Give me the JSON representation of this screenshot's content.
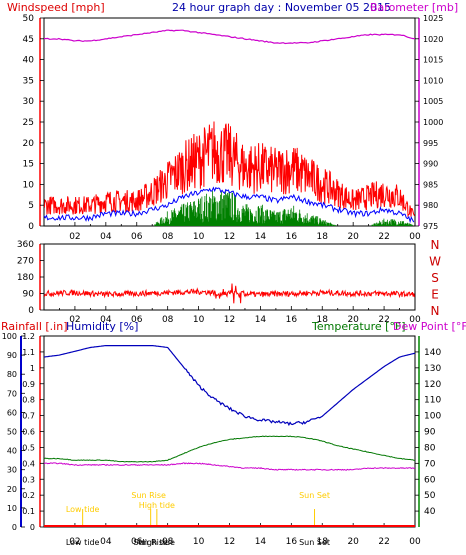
{
  "panel1": {
    "label_wind": "Windspeed [mph]",
    "title": "24 hour graph day : November 05 2015",
    "label_baro": "Barometer [mb]",
    "colors": {
      "wind_gust": "#ff0000",
      "wind_avg": "#0000ff",
      "wind_green": "#008000",
      "baro": "#cc00cc",
      "axis_left": "#ff0000",
      "axis_right": "#cc00cc"
    }
  },
  "panel2": {
    "dir_labels": [
      "N",
      "W",
      "S",
      "E",
      "N"
    ],
    "colors": {
      "direction": "#ff0000"
    }
  },
  "panel3": {
    "label_rain": "Rainfall [.in]",
    "label_hum": "Humidity [%]",
    "label_temp": "Temperature [°F]",
    "label_dew": "Dew Point [°F]",
    "astro": [
      "Low tide",
      "Sun Rise",
      "High tide",
      "Sun Set"
    ],
    "colors": {
      "humidity": "#0000bb",
      "temperature": "#007700",
      "dewpoint": "#cc00cc",
      "rain": "#ff0000",
      "astro": "#ffcc00"
    }
  },
  "chart_data": [
    {
      "type": "line",
      "title": "24 hour graph day : November 05 2015",
      "ylabel": "Windspeed [mph]",
      "y2label": "Barometer [mb]",
      "x_ticks": [
        "02",
        "04",
        "06",
        "08",
        "10",
        "12",
        "14",
        "16",
        "18",
        "20",
        "22",
        "00"
      ],
      "ylim": [
        0,
        50
      ],
      "yticks": [
        0,
        5,
        10,
        15,
        20,
        25,
        30,
        35,
        40,
        45,
        50
      ],
      "y2lim": [
        975,
        1025
      ],
      "y2ticks": [
        975,
        980,
        985,
        990,
        995,
        1000,
        1005,
        1010,
        1015,
        1020,
        1025
      ],
      "x_hours": [
        0,
        1,
        2,
        3,
        4,
        5,
        6,
        7,
        8,
        9,
        10,
        11,
        12,
        13,
        14,
        15,
        16,
        17,
        18,
        19,
        20,
        21,
        22,
        23,
        24
      ],
      "series": [
        {
          "name": "Windspeed [mph]",
          "values": [
            5,
            5,
            5,
            5,
            6,
            6,
            6,
            8,
            11,
            14,
            16,
            18,
            17,
            14,
            14,
            13,
            14,
            12,
            10,
            8,
            6,
            7,
            8,
            7,
            2
          ]
        },
        {
          "name": "",
          "values": [
            2,
            2,
            2,
            2,
            3,
            3,
            3,
            4,
            5,
            7,
            8,
            9,
            8,
            7,
            7,
            6,
            7,
            6,
            5,
            4,
            3,
            3,
            4,
            3,
            1
          ]
        },
        {
          "name": "",
          "values": [
            0,
            0,
            0,
            0,
            0,
            0,
            0,
            0,
            2,
            3,
            4,
            5,
            5,
            3,
            3,
            2,
            3,
            2,
            1,
            0,
            0,
            0,
            1,
            1,
            0
          ]
        },
        {
          "name": "Barometer [mb]",
          "values": [
            1020,
            1020,
            1019.5,
            1019.5,
            1020,
            1020.5,
            1021,
            1021.5,
            1022,
            1022,
            1021.5,
            1021,
            1020.5,
            1020,
            1019.5,
            1019,
            1019,
            1019,
            1019.5,
            1020,
            1020.5,
            1021,
            1021,
            1021,
            1020
          ]
        }
      ]
    },
    {
      "type": "line",
      "ylabel": "",
      "x_ticks": [
        "02",
        "04",
        "06",
        "08",
        "10",
        "12",
        "14",
        "16",
        "18",
        "20",
        "22",
        "00"
      ],
      "ylim": [
        0,
        360
      ],
      "yticks": [
        0,
        90,
        180,
        270,
        360
      ],
      "y2labels": [
        "N",
        "W",
        "S",
        "E",
        "N"
      ],
      "x_hours": [
        0,
        2,
        4,
        6,
        8,
        10,
        12,
        14,
        16,
        18,
        20,
        22,
        24
      ],
      "series": [
        {
          "name": "",
          "values": [
            90,
            95,
            85,
            90,
            95,
            100,
            90,
            85,
            90,
            95,
            90,
            90,
            85
          ]
        }
      ]
    },
    {
      "type": "line",
      "title": "",
      "ylabel": "Rainfall [.in]",
      "x_ticks": [
        "02",
        "04",
        "06",
        "08",
        "10",
        "12",
        "14",
        "16",
        "18",
        "20",
        "22",
        "00"
      ],
      "ylim": [
        0,
        1.2
      ],
      "yticks": [
        0,
        0.1,
        0.2,
        0.3,
        0.4,
        0.5,
        0.6,
        0.7,
        0.8,
        0.9,
        1,
        1.1,
        1.2
      ],
      "y_hum_lim": [
        0,
        100
      ],
      "y_hum_ticks": [
        0,
        10,
        20,
        30,
        40,
        50,
        60,
        70,
        80,
        90,
        100
      ],
      "y_temp_lim": [
        30,
        150
      ],
      "y_temp_ticks": [
        40,
        50,
        60,
        70,
        80,
        90,
        100,
        110,
        120,
        130,
        140
      ],
      "x_hours": [
        0,
        1,
        2,
        3,
        4,
        5,
        6,
        7,
        8,
        9,
        10,
        11,
        12,
        13,
        14,
        15,
        16,
        17,
        18,
        19,
        20,
        21,
        22,
        23,
        24
      ],
      "series": [
        {
          "name": "Humidity [%]",
          "values": [
            89,
            90,
            92,
            94,
            95,
            95,
            95,
            95,
            94,
            84,
            74,
            67,
            62,
            58,
            56,
            55,
            54,
            55,
            58,
            65,
            72,
            78,
            84,
            89,
            91
          ]
        },
        {
          "name": "Temperature [°F]",
          "values": [
            73,
            73,
            72,
            72,
            72,
            71,
            71,
            71,
            72,
            76,
            80,
            83,
            85,
            86,
            87,
            87,
            87,
            86,
            84,
            81,
            79,
            77,
            75,
            73,
            72
          ]
        },
        {
          "name": "Dew Point [°F]",
          "values": [
            70,
            70,
            69,
            69,
            69,
            69,
            69,
            69,
            69,
            70,
            70,
            69,
            68,
            67,
            67,
            66,
            66,
            66,
            66,
            66,
            66,
            67,
            67,
            67,
            67
          ]
        },
        {
          "name": "Rainfall [.in]",
          "values": [
            0,
            0,
            0,
            0,
            0,
            0,
            0,
            0,
            0,
            0,
            0,
            0,
            0,
            0,
            0,
            0,
            0,
            0,
            0,
            0,
            0,
            0,
            0,
            0,
            0
          ]
        }
      ],
      "events": [
        {
          "label": "Low tide",
          "hour": 2.5
        },
        {
          "label": "Sun Rise",
          "hour": 6.9
        },
        {
          "label": "High tide",
          "hour": 7.3
        },
        {
          "label": "Sun Set",
          "hour": 17.5
        }
      ]
    }
  ]
}
